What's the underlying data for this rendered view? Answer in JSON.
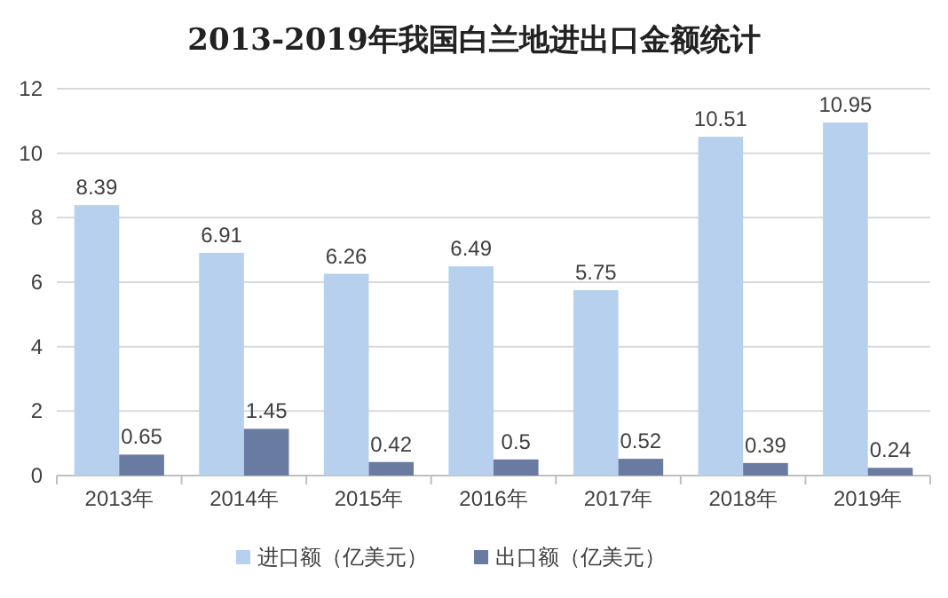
{
  "chart_data": {
    "type": "bar",
    "title": "2013-2019年我国白兰地进出口金额统计",
    "categories": [
      "2013年",
      "2014年",
      "2015年",
      "2016年",
      "2017年",
      "2018年",
      "2019年"
    ],
    "series": [
      {
        "name": "进口额（亿美元）",
        "color": "#b7d0ee",
        "values": [
          8.39,
          6.91,
          6.26,
          6.49,
          5.75,
          10.51,
          10.95
        ]
      },
      {
        "name": "出口额（亿美元）",
        "color": "#6a7ba2",
        "values": [
          0.65,
          1.45,
          0.42,
          0.5,
          0.52,
          0.39,
          0.24
        ]
      }
    ],
    "ylim": [
      0,
      12
    ],
    "yticks": [
      0,
      2,
      4,
      6,
      8,
      10,
      12
    ],
    "grid": "y",
    "legend": "bottom",
    "data_labels": true
  }
}
